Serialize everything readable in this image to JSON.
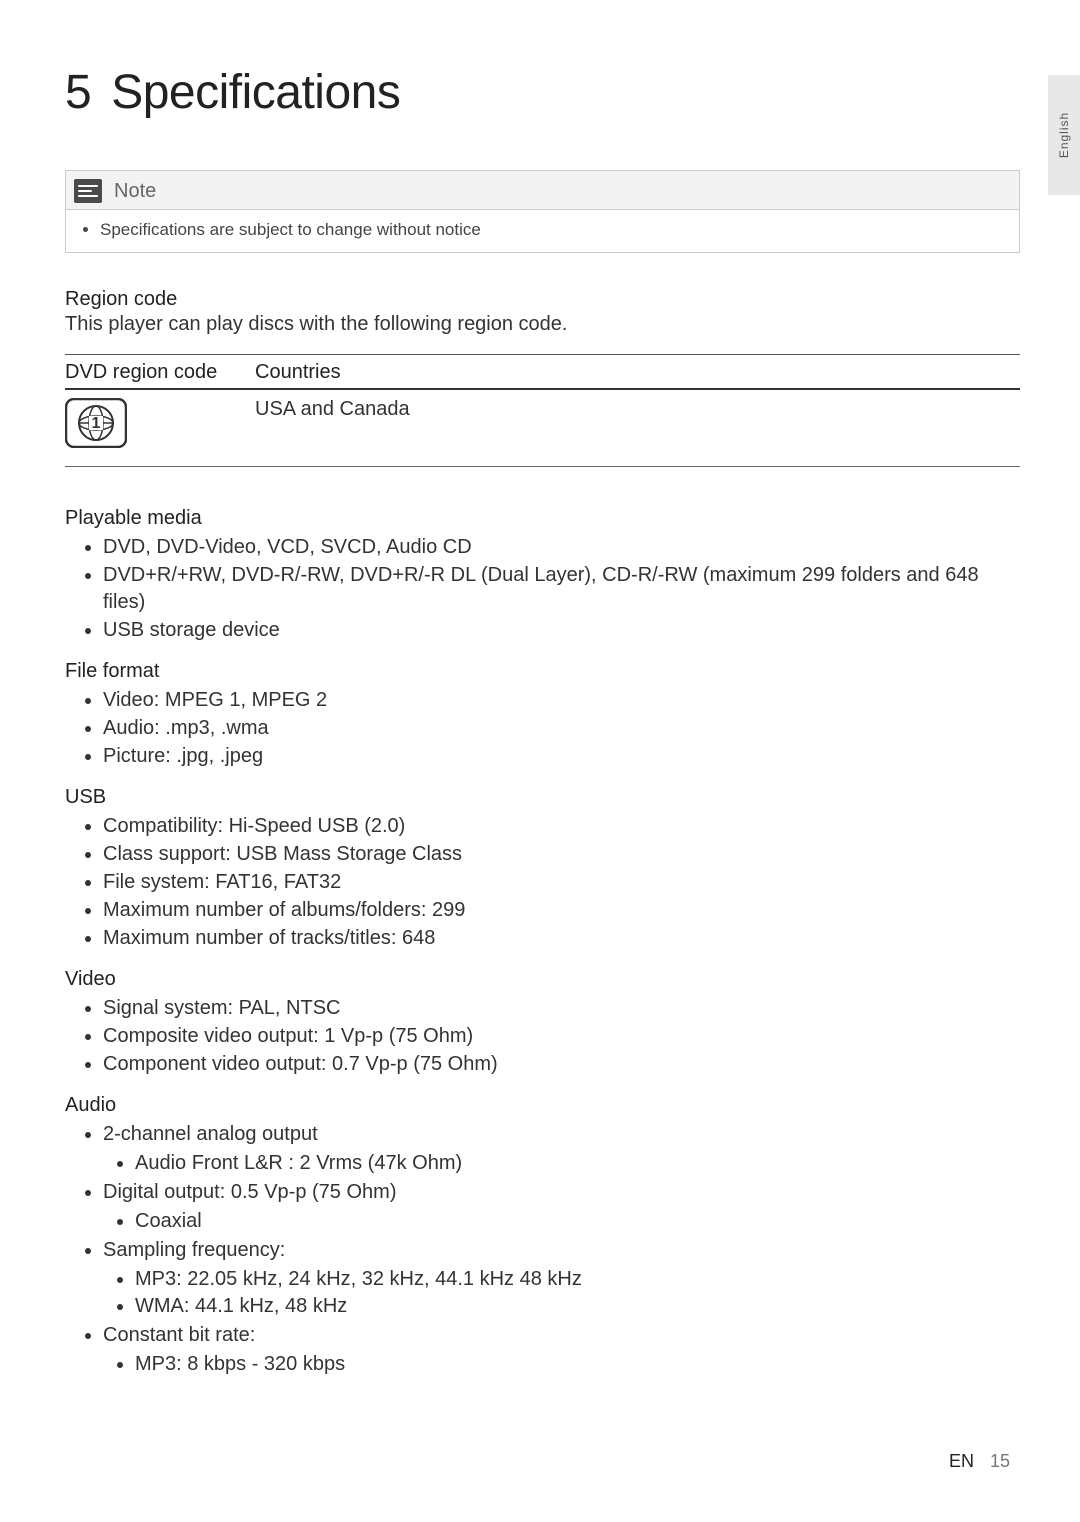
{
  "side_tab": "English",
  "title": {
    "number": "5",
    "text": "Specifications"
  },
  "note": {
    "label": "Note",
    "items": [
      "Specifications are subject to change without notice"
    ]
  },
  "region": {
    "heading": "Region code",
    "description": "This player can play discs with the following region code.",
    "table": {
      "col1": "DVD region code",
      "col2": "Countries",
      "region_number": "1",
      "countries": "USA and Canada"
    }
  },
  "sections": [
    {
      "heading": "Playable media",
      "items": [
        {
          "text": "DVD, DVD-Video, VCD, SVCD, Audio CD"
        },
        {
          "text": "DVD+R/+RW, DVD-R/-RW, DVD+R/-R DL (Dual Layer), CD-R/-RW (maximum 299 folders and 648 files)"
        },
        {
          "text": "USB storage device"
        }
      ]
    },
    {
      "heading": "File format",
      "items": [
        {
          "text": "Video: MPEG 1, MPEG 2"
        },
        {
          "text": "Audio: .mp3, .wma"
        },
        {
          "text": "Picture: .jpg, .jpeg"
        }
      ]
    },
    {
      "heading": "USB",
      "items": [
        {
          "text": "Compatibility: Hi-Speed USB (2.0)"
        },
        {
          "text": "Class support: USB Mass Storage Class"
        },
        {
          "text": "File system: FAT16, FAT32"
        },
        {
          "text": "Maximum number of albums/folders: 299"
        },
        {
          "text": "Maximum number of tracks/titles: 648"
        }
      ]
    },
    {
      "heading": "Video",
      "items": [
        {
          "text": "Signal system: PAL, NTSC"
        },
        {
          "text": "Composite video output: 1 Vp-p (75 Ohm)"
        },
        {
          "text": "Component video output: 0.7 Vp-p (75 Ohm)"
        }
      ]
    },
    {
      "heading": "Audio",
      "items": [
        {
          "text": "2-channel analog output",
          "sub": [
            "Audio Front L&R : 2 Vrms (47k Ohm)"
          ]
        },
        {
          "text": "Digital output: 0.5 Vp-p (75 Ohm)",
          "sub": [
            "Coaxial"
          ]
        },
        {
          "text": "Sampling frequency:",
          "sub": [
            "MP3: 22.05 kHz, 24 kHz, 32 kHz, 44.1 kHz 48 kHz",
            "WMA: 44.1 kHz, 48 kHz"
          ]
        },
        {
          "text": "Constant bit rate:",
          "sub": [
            "MP3: 8 kbps - 320 kbps"
          ]
        }
      ]
    }
  ],
  "footer": {
    "lang": "EN",
    "page": "15"
  },
  "colors": {
    "background": "#ffffff",
    "text": "#333333",
    "heading": "#222222",
    "note_bg": "#f3f3f3",
    "note_border": "#cccccc",
    "note_icon_bg": "#4a4a4a",
    "side_tab_bg": "#e8e8e8",
    "rule": "#555555"
  },
  "typography": {
    "title_fontsize": 48,
    "body_fontsize": 20,
    "note_body_fontsize": 17,
    "side_tab_fontsize": 12
  }
}
